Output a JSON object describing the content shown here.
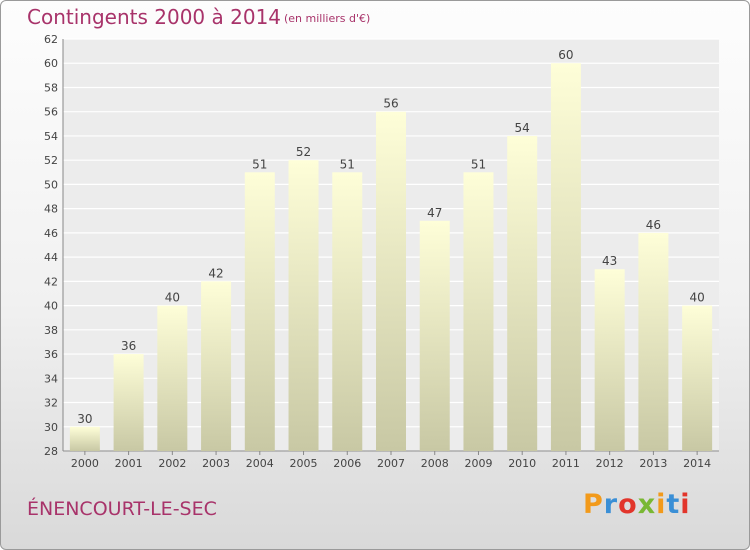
{
  "header": {
    "title": "Contingents 2000 à 2014",
    "unit": "(en milliers d'€)"
  },
  "footer": {
    "commune": "ÉNENCOURT-LE-SEC",
    "logo_letters": [
      "P",
      "r",
      "o",
      "x",
      "i",
      "t",
      "i"
    ],
    "logo_colors": [
      "#f29a1b",
      "#3a8fd6",
      "#e2352b",
      "#79b833",
      "#f29a1b",
      "#3a8fd6",
      "#e2352b"
    ]
  },
  "colors": {
    "title": "#a8336a",
    "bar_top": "#fefed8",
    "bar_bottom": "#c8c8a4",
    "grid": "#ffffff",
    "axis_text": "#444444"
  },
  "chart_data": {
    "type": "bar",
    "categories": [
      "2000",
      "2001",
      "2002",
      "2003",
      "2004",
      "2005",
      "2006",
      "2007",
      "2008",
      "2009",
      "2010",
      "2011",
      "2012",
      "2013",
      "2014"
    ],
    "values": [
      30,
      36,
      40,
      42,
      51,
      52,
      51,
      56,
      47,
      51,
      54,
      60,
      43,
      46,
      40
    ],
    "title": "Contingents 2000 à 2014",
    "subtitle": "(en milliers d'€)",
    "xlabel": "",
    "ylabel": "",
    "ylim": [
      28,
      62
    ],
    "yticks": [
      28,
      30,
      32,
      34,
      36,
      38,
      40,
      42,
      44,
      46,
      48,
      50,
      52,
      54,
      56,
      58,
      60,
      62
    ],
    "grid": true,
    "legend": "none",
    "data_labels": true
  }
}
